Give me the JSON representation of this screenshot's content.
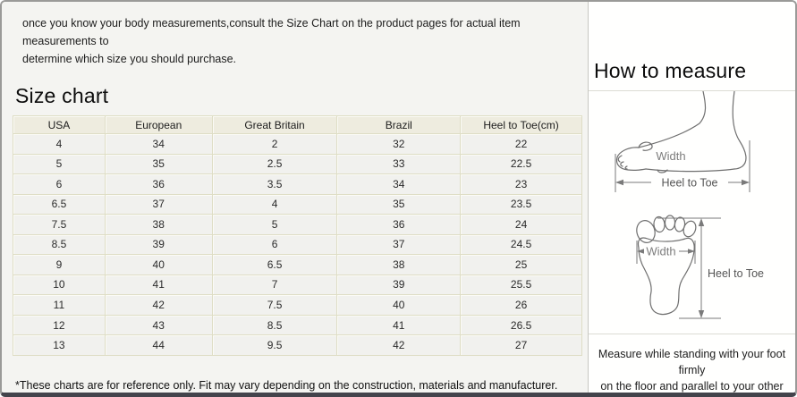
{
  "intro": {
    "line1": "once you know your body measurements,consult the Size Chart on the product pages for actual item measurements to",
    "line2": "determine which size you should purchase."
  },
  "size_chart": {
    "title": "Size chart",
    "columns": [
      "USA",
      "European",
      "Great Britain",
      "Brazil",
      "Heel to Toe(cm)"
    ],
    "rows": [
      [
        "4",
        "34",
        "2",
        "32",
        "22"
      ],
      [
        "5",
        "35",
        "2.5",
        "33",
        "22.5"
      ],
      [
        "6",
        "36",
        "3.5",
        "34",
        "23"
      ],
      [
        "6.5",
        "37",
        "4",
        "35",
        "23.5"
      ],
      [
        "7.5",
        "38",
        "5",
        "36",
        "24"
      ],
      [
        "8.5",
        "39",
        "6",
        "37",
        "24.5"
      ],
      [
        "9",
        "40",
        "6.5",
        "38",
        "25"
      ],
      [
        "10",
        "41",
        "7",
        "39",
        "25.5"
      ],
      [
        "11",
        "42",
        "7.5",
        "40",
        "26"
      ],
      [
        "12",
        "43",
        "8.5",
        "41",
        "26.5"
      ],
      [
        "13",
        "44",
        "9.5",
        "42",
        "27"
      ]
    ],
    "footnote": "*These charts are for reference only. Fit may vary depending on the construction, materials and manufacturer."
  },
  "how_to_measure": {
    "title": "How to measure",
    "side_view": {
      "width_label": "Width",
      "heel_to_toe_label": "Heel to Toe"
    },
    "sole_view": {
      "width_label": "Width",
      "heel_to_toe_label": "Heel to Toe"
    },
    "note_line1": "Measure while standing with your foot firmly",
    "note_line2": "on the floor and parallel to your other foot."
  },
  "colors": {
    "left_panel_bg": "#f4f4f1",
    "right_panel_bg": "#fffffe",
    "table_header_bg": "#eeecdf",
    "table_row_bg": "#f1f1ee",
    "table_border": "#deddc5",
    "frame_border": "#9a9a98",
    "frame_bottom_bar": "#43434b",
    "sketch_stroke": "#6f6f6f"
  }
}
